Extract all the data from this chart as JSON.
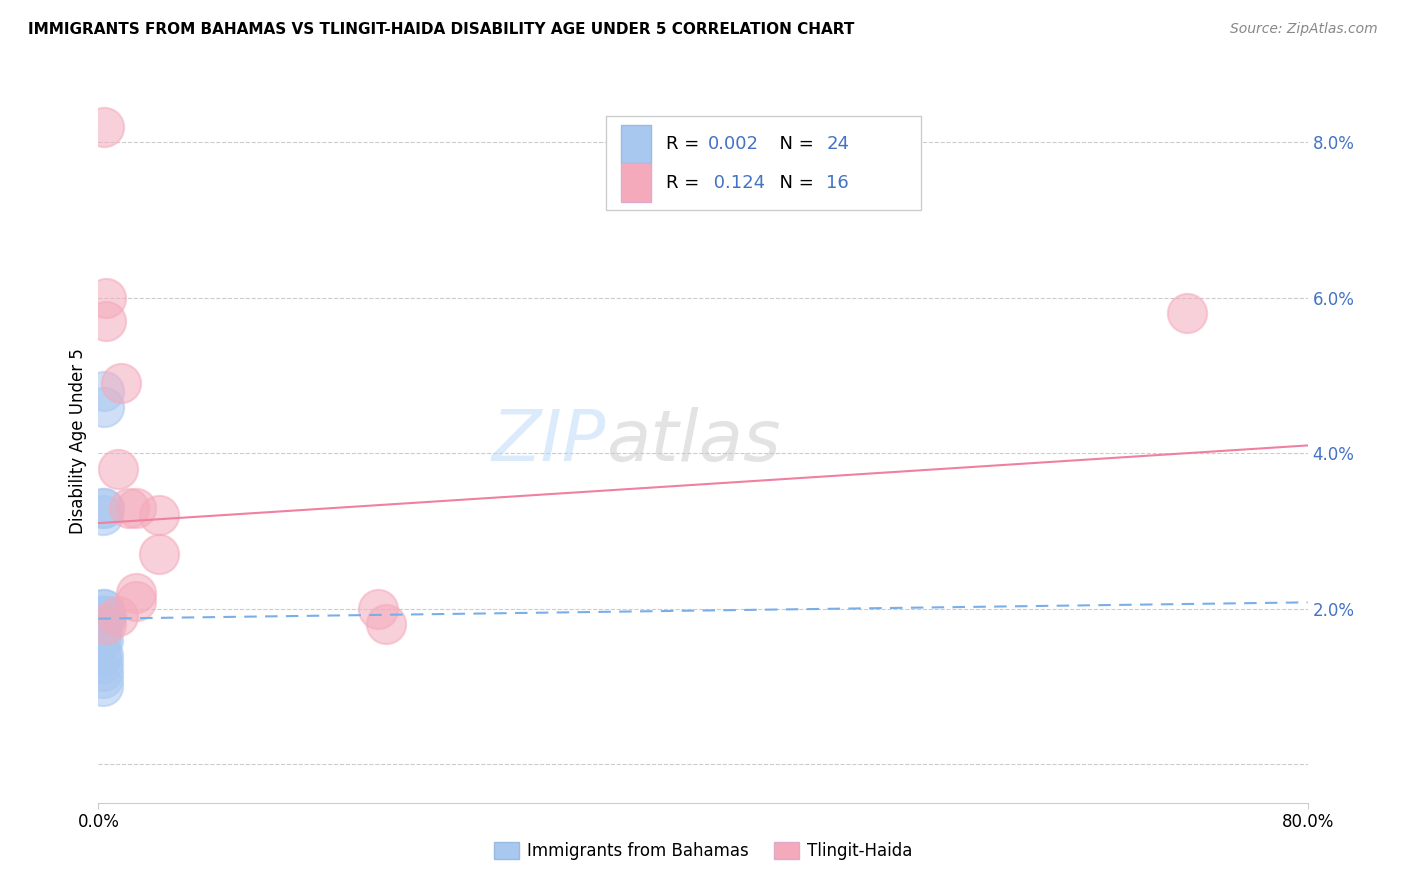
{
  "title": "IMMIGRANTS FROM BAHAMAS VS TLINGIT-HAIDA DISABILITY AGE UNDER 5 CORRELATION CHART",
  "source": "Source: ZipAtlas.com",
  "ylabel": "Disability Age Under 5",
  "legend_label1": "Immigrants from Bahamas",
  "legend_label2": "Tlingit-Haida",
  "R1": "0.002",
  "N1": "24",
  "R2": "0.124",
  "N2": "16",
  "blue_color": "#A8C8F0",
  "pink_color": "#F4AABB",
  "blue_line_color": "#7AAEE8",
  "pink_line_color": "#F080A0",
  "right_axis_color": "#4472C4",
  "legend_text_color": "#4472C4",
  "ytick_labels": [
    "2.0%",
    "4.0%",
    "6.0%",
    "8.0%"
  ],
  "ytick_values": [
    0.02,
    0.04,
    0.06,
    0.08
  ],
  "grid_ytick_values": [
    0.0,
    0.02,
    0.04,
    0.06,
    0.08
  ],
  "xlim": [
    0.0,
    0.8
  ],
  "ylim": [
    -0.005,
    0.088
  ],
  "blue_scatter_x": [
    0.002,
    0.002,
    0.002,
    0.002,
    0.002,
    0.003,
    0.003,
    0.003,
    0.003,
    0.003,
    0.003,
    0.003,
    0.003,
    0.003,
    0.003,
    0.003,
    0.003,
    0.004,
    0.004,
    0.004,
    0.004,
    0.004,
    0.005,
    0.005
  ],
  "blue_scatter_y": [
    0.019,
    0.019,
    0.017,
    0.016,
    0.014,
    0.02,
    0.019,
    0.018,
    0.016,
    0.014,
    0.013,
    0.012,
    0.011,
    0.01,
    0.033,
    0.032,
    0.019,
    0.048,
    0.046,
    0.033,
    0.02,
    0.019,
    0.019,
    0.019
  ],
  "pink_scatter_x": [
    0.004,
    0.005,
    0.005,
    0.015,
    0.02,
    0.025,
    0.025,
    0.04,
    0.185,
    0.72,
    0.005,
    0.013,
    0.025,
    0.04,
    0.19,
    0.013
  ],
  "pink_scatter_y": [
    0.082,
    0.06,
    0.057,
    0.049,
    0.033,
    0.033,
    0.021,
    0.032,
    0.02,
    0.058,
    0.018,
    0.019,
    0.022,
    0.027,
    0.018,
    0.038
  ],
  "blue_trend_x": [
    0.0,
    0.8
  ],
  "blue_trend_y": [
    0.0187,
    0.0208
  ],
  "pink_trend_x": [
    0.0,
    0.8
  ],
  "pink_trend_y": [
    0.031,
    0.041
  ],
  "watermark_zip": "ZIP",
  "watermark_atlas": "atlas",
  "background_color": "#ffffff",
  "grid_color": "#cccccc",
  "legend_border_color": "#cccccc",
  "xtick_labels": [
    "0.0%",
    "80.0%"
  ],
  "xtick_values": [
    0.0,
    0.8
  ]
}
